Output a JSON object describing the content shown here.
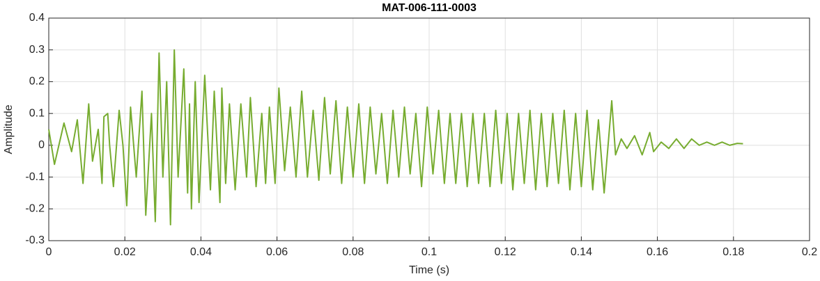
{
  "chart_data": {
    "type": "line",
    "title": "MAT-006-111-0003",
    "xlabel": "Time (s)",
    "ylabel": "Amplitude",
    "xlim": [
      0,
      0.2
    ],
    "ylim": [
      -0.3,
      0.4
    ],
    "xticks": [
      0,
      0.02,
      0.04,
      0.06,
      0.08,
      0.1,
      0.12,
      0.14,
      0.16,
      0.18,
      0.2
    ],
    "yticks": [
      -0.3,
      -0.2,
      -0.1,
      0,
      0.1,
      0.2,
      0.3,
      0.4
    ],
    "grid": true,
    "series": [
      {
        "color": "#77ac30",
        "x": [
          0,
          0.0015,
          0.004,
          0.006,
          0.0075,
          0.009,
          0.0105,
          0.0115,
          0.013,
          0.014,
          0.0145,
          0.0155,
          0.016,
          0.017,
          0.0185,
          0.0195,
          0.0205,
          0.0215,
          0.023,
          0.0245,
          0.0255,
          0.027,
          0.028,
          0.029,
          0.03,
          0.031,
          0.032,
          0.033,
          0.034,
          0.0355,
          0.0365,
          0.037,
          0.0375,
          0.0385,
          0.0395,
          0.041,
          0.0425,
          0.0435,
          0.045,
          0.0455,
          0.0465,
          0.0475,
          0.049,
          0.0505,
          0.052,
          0.053,
          0.0545,
          0.056,
          0.057,
          0.058,
          0.0595,
          0.0605,
          0.062,
          0.0635,
          0.065,
          0.0665,
          0.068,
          0.0695,
          0.071,
          0.0725,
          0.074,
          0.0755,
          0.077,
          0.0785,
          0.08,
          0.0815,
          0.083,
          0.0845,
          0.086,
          0.0875,
          0.089,
          0.0905,
          0.092,
          0.0935,
          0.095,
          0.0965,
          0.098,
          0.0995,
          0.101,
          0.1025,
          0.104,
          0.1055,
          0.107,
          0.1085,
          0.11,
          0.1115,
          0.113,
          0.1145,
          0.116,
          0.1175,
          0.119,
          0.1205,
          0.122,
          0.1235,
          0.125,
          0.1265,
          0.128,
          0.1295,
          0.131,
          0.1325,
          0.134,
          0.1355,
          0.137,
          0.1385,
          0.14,
          0.1415,
          0.143,
          0.1445,
          0.146,
          0.148,
          0.149,
          0.1505,
          0.152,
          0.154,
          0.156,
          0.158,
          0.159,
          0.161,
          0.163,
          0.165,
          0.167,
          0.169,
          0.171,
          0.173,
          0.175,
          0.177,
          0.179,
          0.181,
          0.1825
        ],
        "values": [
          0.05,
          -0.06,
          0.07,
          -0.02,
          0.08,
          -0.12,
          0.13,
          -0.05,
          0.05,
          -0.12,
          0.09,
          0.1,
          0.0,
          -0.13,
          0.11,
          0.0,
          -0.19,
          0.12,
          -0.1,
          0.17,
          -0.22,
          0.1,
          -0.24,
          0.29,
          -0.1,
          0.2,
          -0.25,
          0.3,
          -0.1,
          0.24,
          -0.15,
          0.13,
          -0.2,
          0.2,
          -0.18,
          0.22,
          -0.14,
          0.17,
          -0.18,
          0.18,
          -0.12,
          0.13,
          -0.14,
          0.13,
          -0.1,
          0.15,
          -0.13,
          0.1,
          -0.12,
          0.12,
          -0.12,
          0.18,
          -0.08,
          0.12,
          -0.1,
          0.17,
          -0.1,
          0.11,
          -0.11,
          0.15,
          -0.09,
          0.14,
          -0.12,
          0.12,
          -0.1,
          0.13,
          -0.12,
          0.12,
          -0.09,
          0.1,
          -0.12,
          0.11,
          -0.1,
          0.12,
          -0.09,
          0.1,
          -0.13,
          0.12,
          -0.09,
          0.11,
          -0.12,
          0.1,
          -0.12,
          0.1,
          -0.13,
          0.1,
          -0.12,
          0.1,
          -0.13,
          0.11,
          -0.12,
          0.1,
          -0.14,
          0.1,
          -0.12,
          0.11,
          -0.14,
          0.1,
          -0.13,
          0.1,
          -0.12,
          0.11,
          -0.14,
          0.1,
          -0.13,
          0.11,
          -0.14,
          0.08,
          -0.15,
          0.14,
          -0.03,
          0.02,
          -0.01,
          0.03,
          -0.03,
          0.04,
          -0.02,
          0.01,
          -0.01,
          0.02,
          -0.01,
          0.02,
          0.0,
          0.01,
          0.0,
          0.01,
          0.0,
          0.006,
          0.005
        ]
      }
    ]
  }
}
